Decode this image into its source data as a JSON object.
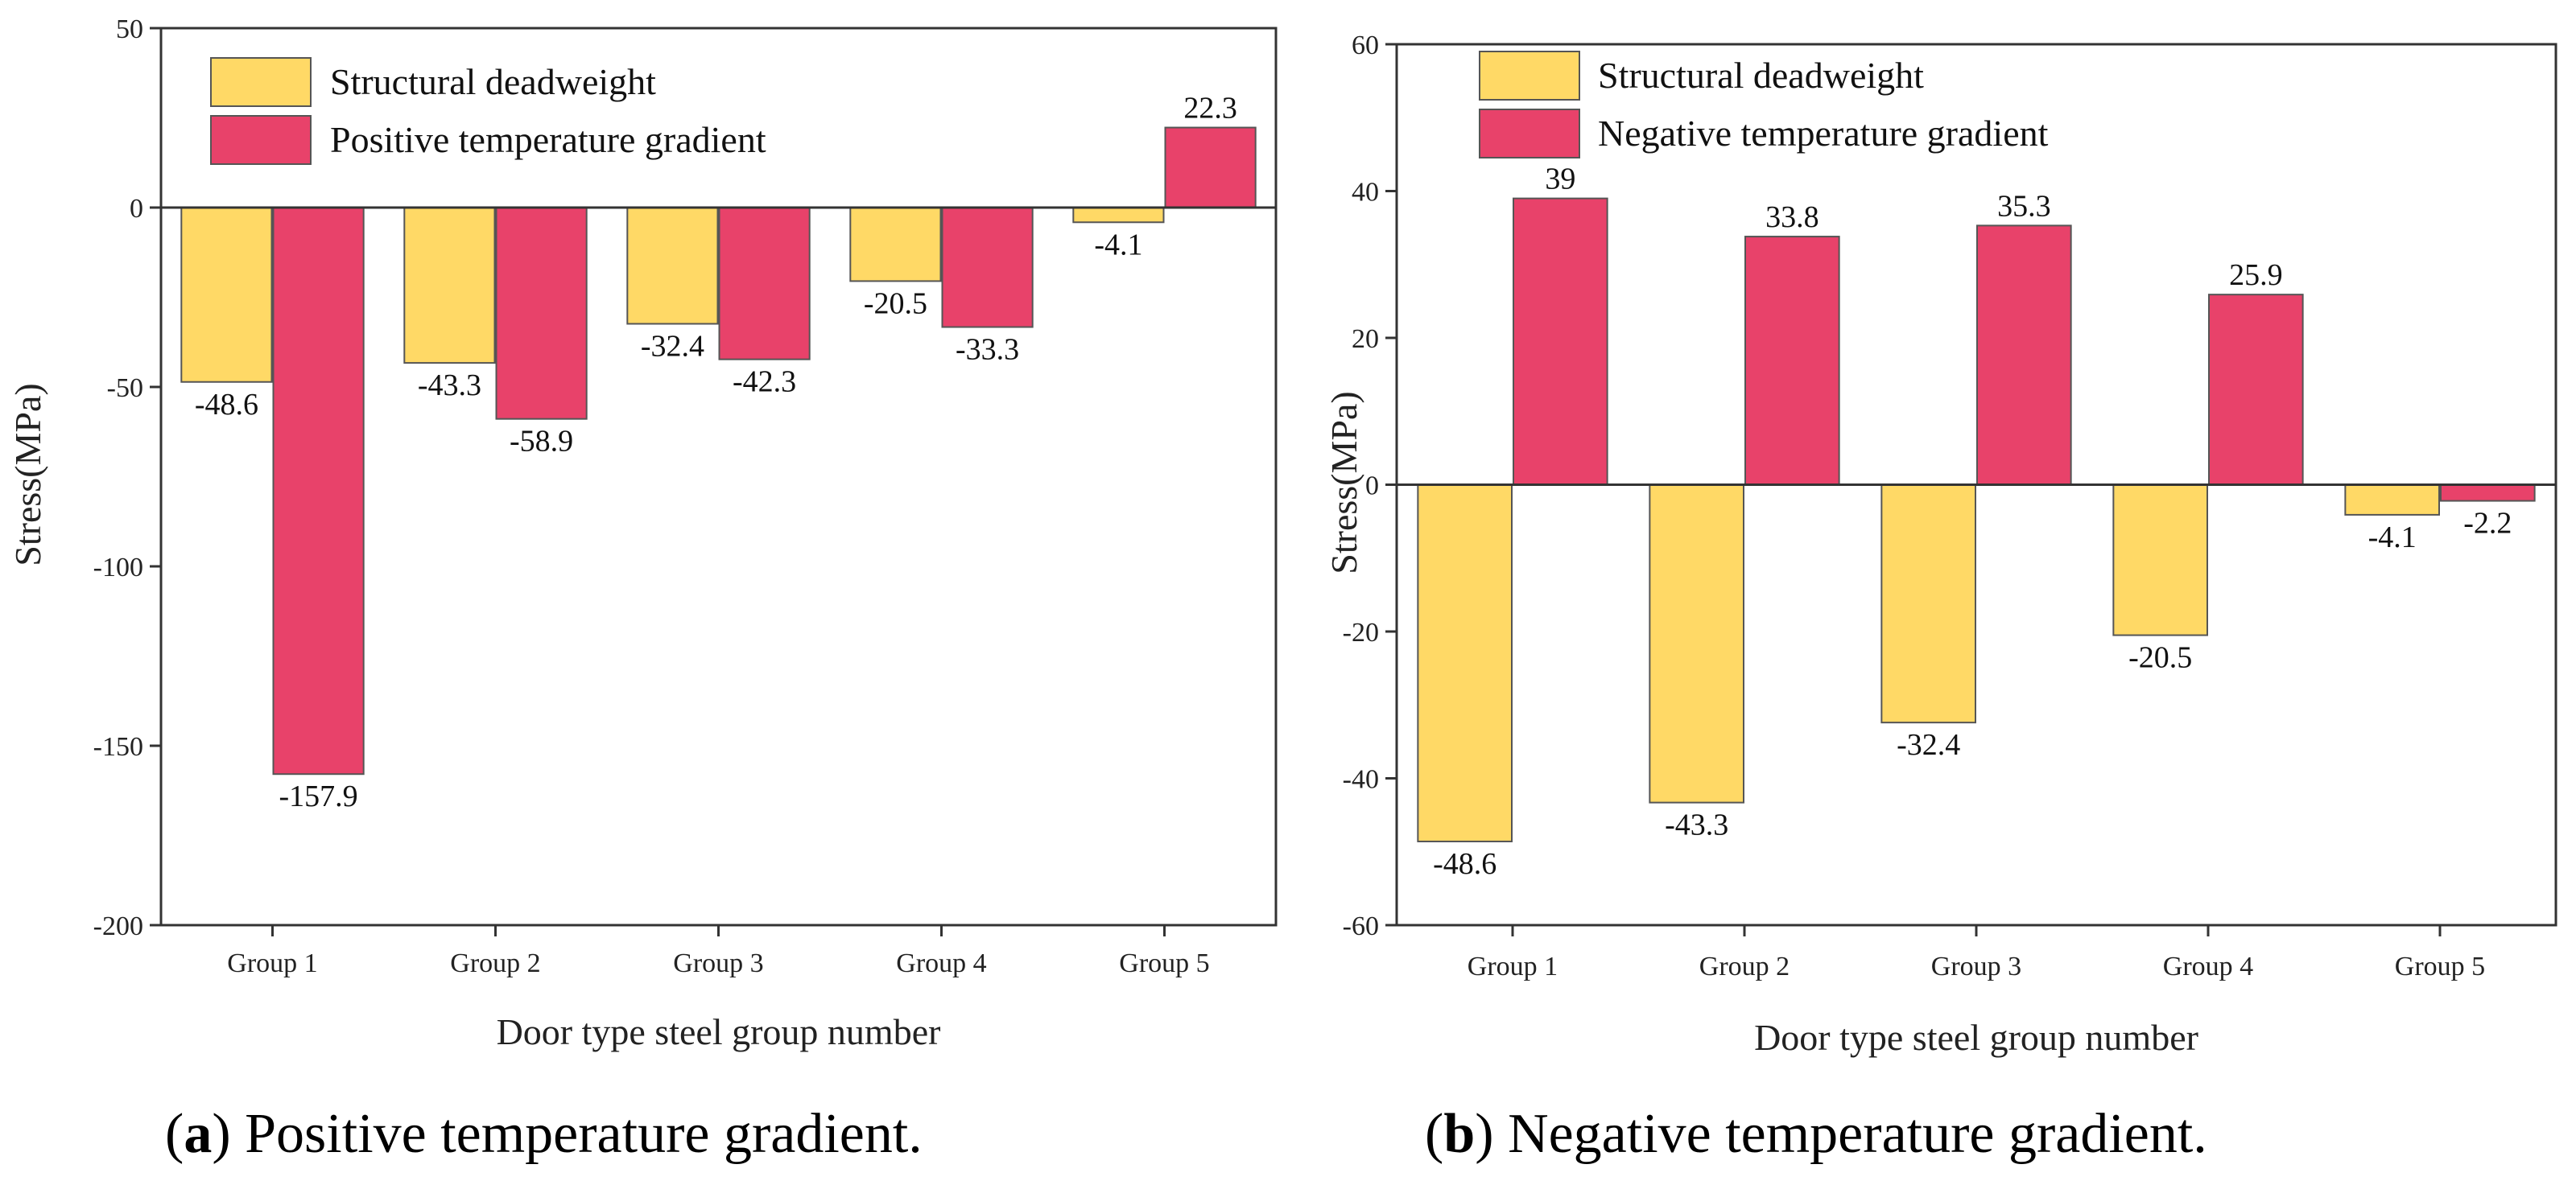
{
  "chart_data": [
    {
      "type": "bar",
      "panel_id": "a",
      "caption": "Positive temperature gradient.",
      "xlabel": "Door type steel group number",
      "ylabel": "Stress(MPa)",
      "ylim": [
        -200,
        50
      ],
      "yticks": [
        50,
        0,
        -50,
        -100,
        -150,
        -200
      ],
      "categories": [
        "Group 1",
        "Group 2",
        "Group 3",
        "Group 4",
        "Group 5"
      ],
      "series": [
        {
          "name": "Structural deadweight",
          "values": [
            -48.6,
            -43.3,
            -32.4,
            -20.5,
            -4.1
          ],
          "labels": [
            "-48.6",
            "-43.3",
            "-32.4",
            "-20.5",
            "-4.1"
          ],
          "color": "#FFD966"
        },
        {
          "name": "Positive temperature gradient",
          "values": [
            -157.9,
            -58.9,
            -42.3,
            -33.3,
            22.3
          ],
          "labels": [
            "-157.9",
            "-58.9",
            "-42.3",
            "-33.3",
            "22.3"
          ],
          "color": "#E8426A"
        }
      ],
      "legend": "top-left",
      "grid": false
    },
    {
      "type": "bar",
      "panel_id": "b",
      "caption": "Negative temperature gradient.",
      "xlabel": "Door type steel group number",
      "ylabel": "Stress(MPa)",
      "ylim": [
        -60,
        60
      ],
      "yticks": [
        60,
        40,
        20,
        0,
        -20,
        -40,
        -60
      ],
      "categories": [
        "Group 1",
        "Group 2",
        "Group 3",
        "Group 4",
        "Group 5"
      ],
      "series": [
        {
          "name": "Structural deadweight",
          "values": [
            -48.6,
            -43.3,
            -32.4,
            -20.5,
            -4.1
          ],
          "labels": [
            "-48.6",
            "-43.3",
            "-32.4",
            "-20.5",
            "-4.1"
          ],
          "color": "#FFD966"
        },
        {
          "name": "Negative temperature gradient",
          "values": [
            39,
            33.8,
            35.3,
            25.9,
            -2.2
          ],
          "labels": [
            "39",
            "33.8",
            "35.3",
            "25.9",
            "-2.2"
          ],
          "color": "#E8426A"
        }
      ],
      "legend": "top-left",
      "grid": false
    }
  ]
}
